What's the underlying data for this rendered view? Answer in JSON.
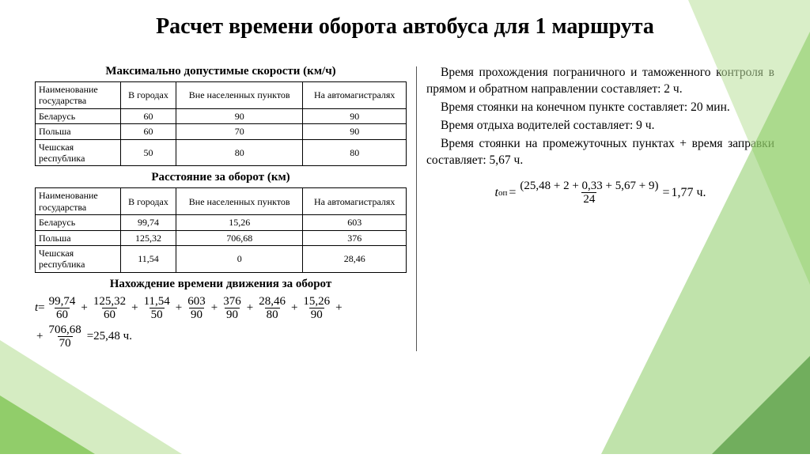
{
  "title": "Расчет времени оборота автобуса для 1 маршрута",
  "table1": {
    "heading": "Максимально допустимые скорости (км/ч)",
    "columns": [
      "Наименование государства",
      "В городах",
      "Вне населенных пунктов",
      "На автомагистралях"
    ],
    "rows": [
      [
        "Беларусь",
        "60",
        "90",
        "90"
      ],
      [
        "Польша",
        "60",
        "70",
        "90"
      ],
      [
        "Чешская республика",
        "50",
        "80",
        "80"
      ]
    ]
  },
  "table2": {
    "heading": "Расстояние за оборот (км)",
    "columns": [
      "Наименование государства",
      "В городах",
      "Вне населенных пунктов",
      "На автомагистралях"
    ],
    "rows": [
      [
        "Беларусь",
        "99,74",
        "15,26",
        "603"
      ],
      [
        "Польша",
        "125,32",
        "706,68",
        "376"
      ],
      [
        "Чешская республика",
        "11,54",
        "0",
        "28,46"
      ]
    ]
  },
  "subheading3": "Нахождение времени движения за оборот",
  "formula_t": {
    "lead": "t=",
    "terms": [
      {
        "num": "99,74",
        "den": "60"
      },
      {
        "num": "125,32",
        "den": "60"
      },
      {
        "num": "11,54",
        "den": "50"
      },
      {
        "num": "603",
        "den": "90"
      },
      {
        "num": "376",
        "den": "90"
      },
      {
        "num": "28,46",
        "den": "80"
      },
      {
        "num": "15,26",
        "den": "90"
      }
    ],
    "tail_term": {
      "num": "706,68",
      "den": "70"
    },
    "result": "=25,48 ч."
  },
  "paragraphs": [
    "Время прохождения пограничного и таможенного контроля в прямом и обратном направлении составляет: 2 ч.",
    "Время стоянки на конечном пункте составляет: 20 мин.",
    "Время отдыха водителей составляет: 9 ч.",
    "Время стоянки на промежуточных пунктах + время заправки составляет: 5,67 ч."
  ],
  "eq_right": {
    "lhs_var": "t",
    "lhs_sub": "оп",
    "num": "(25,48 + 2 + 0,33 + 5,67 + 9)",
    "den": "24",
    "result": "1,77 ч."
  },
  "decor": {
    "green_light": "#b9e09a",
    "green_mid": "#74c045",
    "green_dark": "#3c8a2a"
  }
}
